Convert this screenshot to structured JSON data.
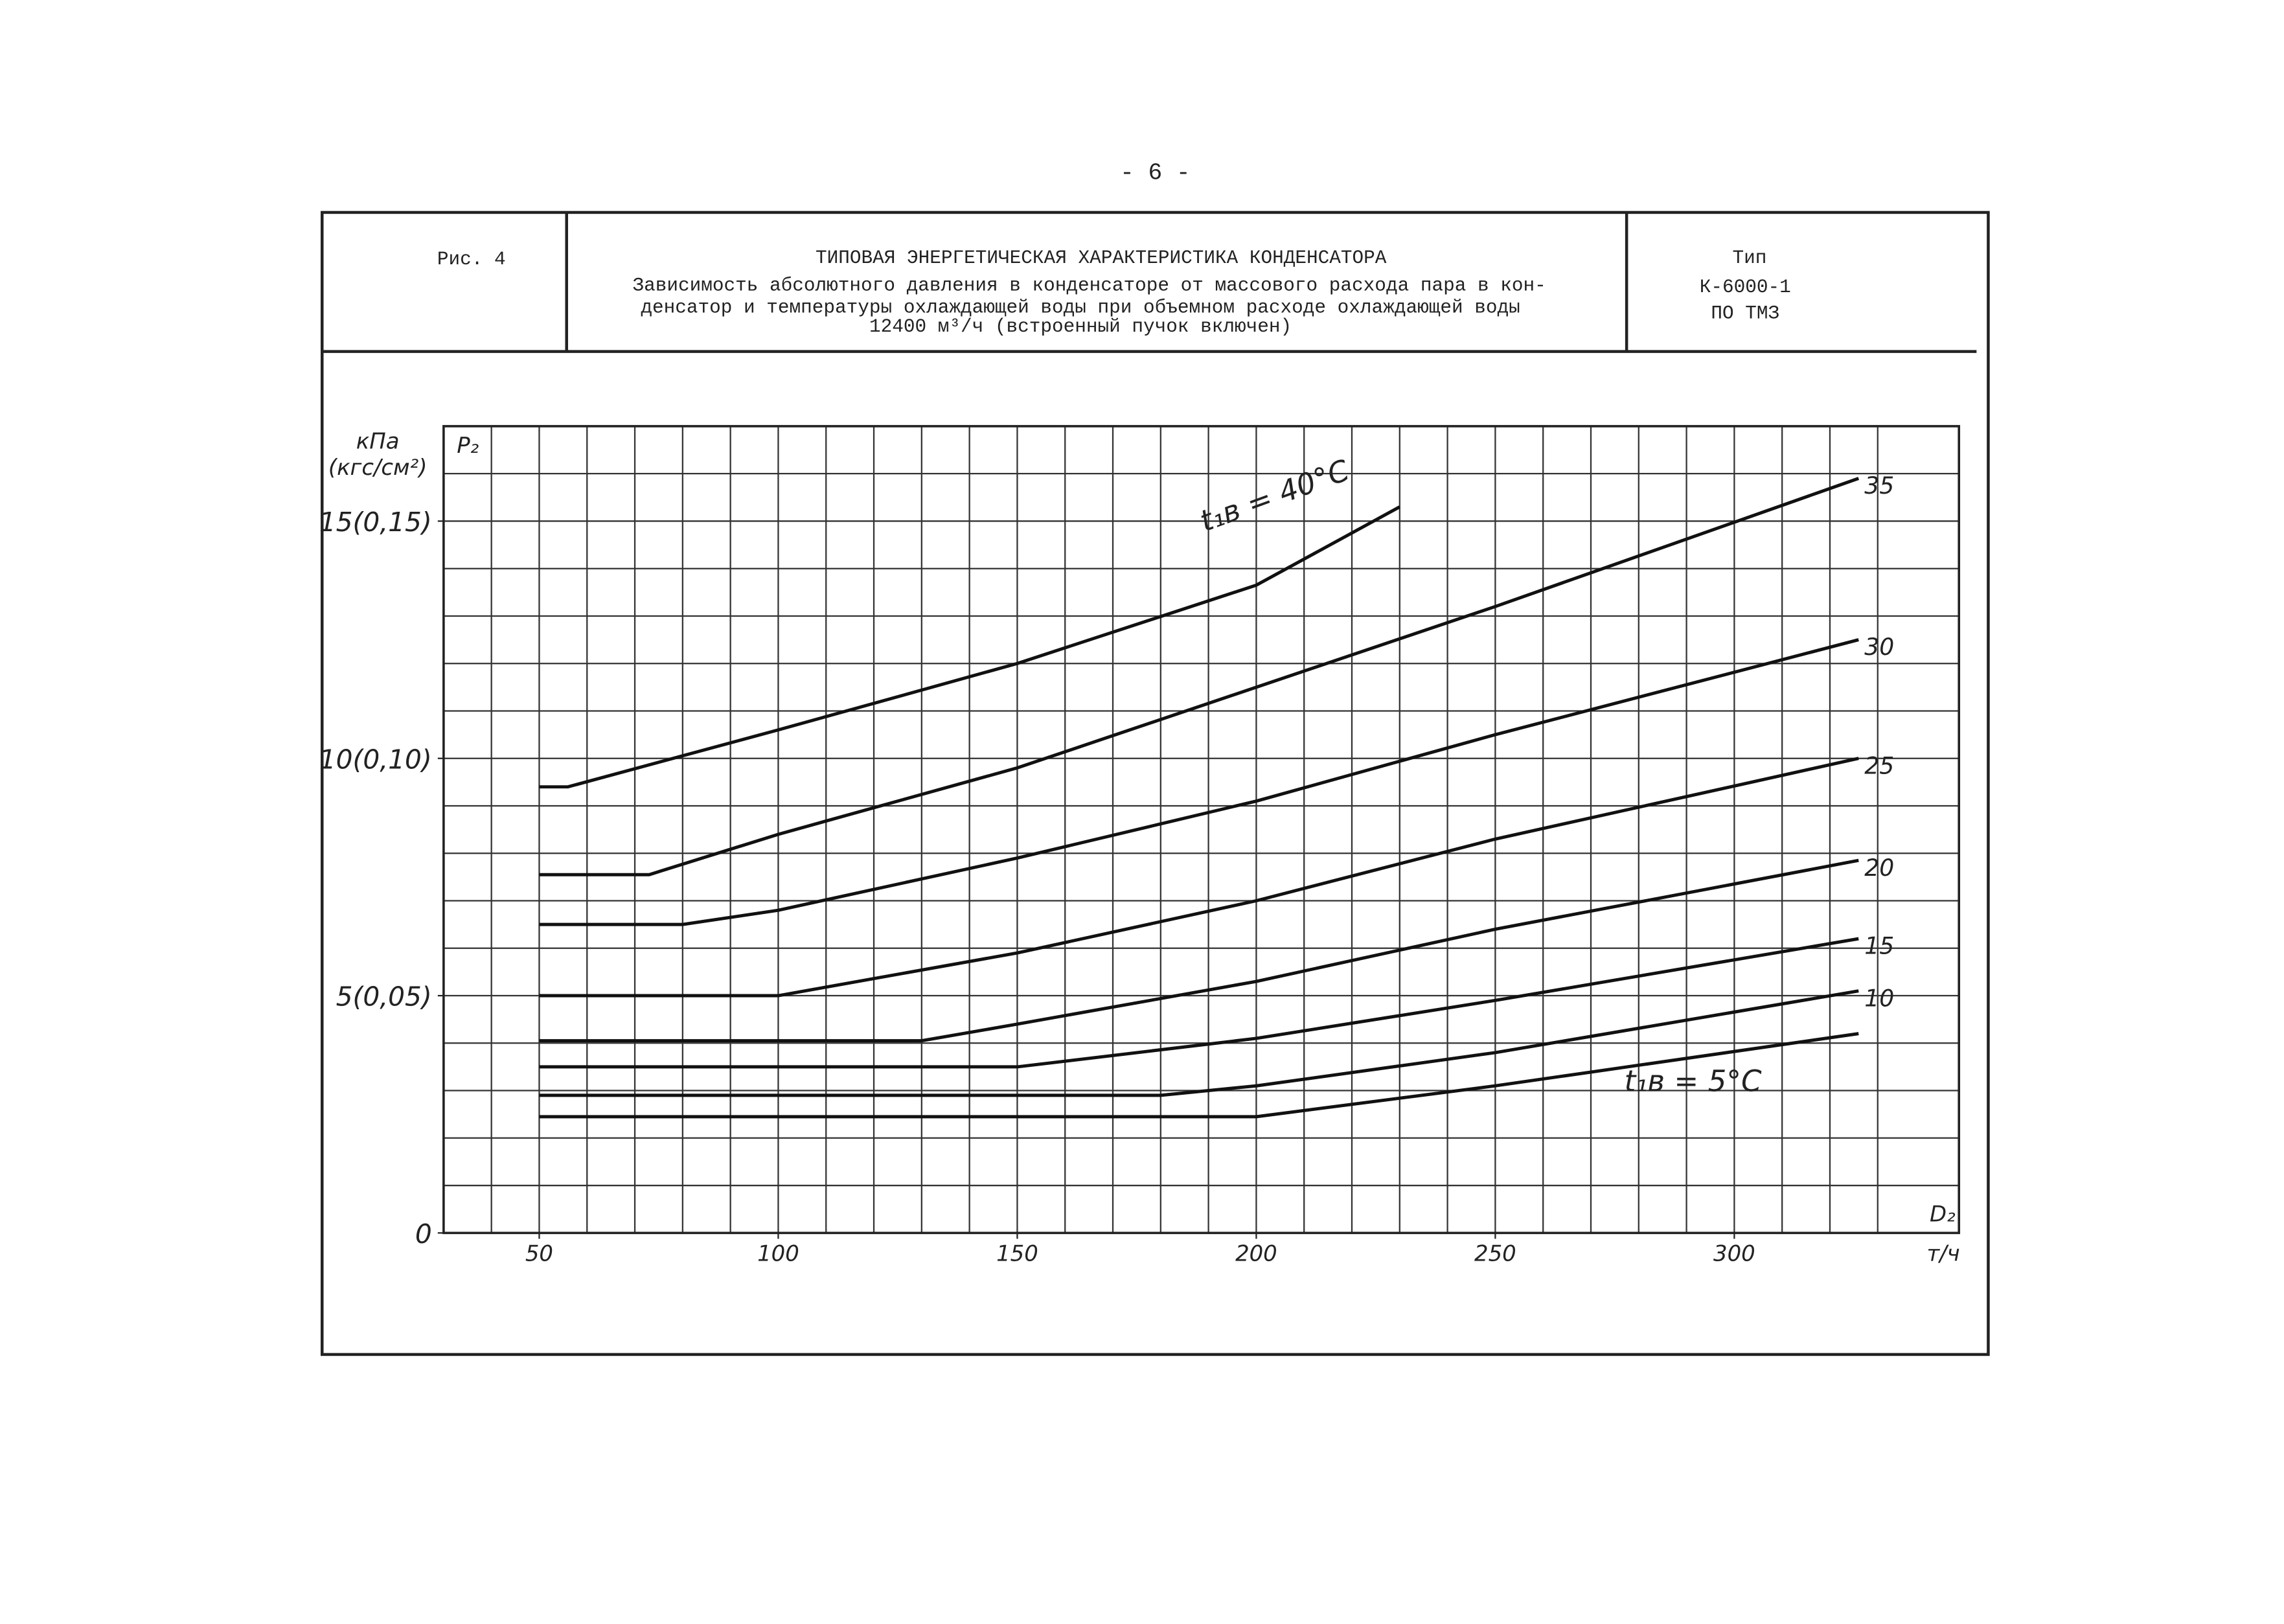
{
  "page": {
    "number": "- 6 -"
  },
  "header": {
    "figure": "Рис. 4",
    "title": "ТИПОВАЯ ЭНЕРГЕТИЧЕСКАЯ ХАРАКТЕРИСТИКА КОНДЕНСАТОРА",
    "description": [
      "Зависимость абсолютного давления в конденсаторе от массового расхода пара в кон-",
      "денсатор и температуры охлаждающей воды при объемном расходе охлаждающей воды",
      "12400 м³/ч (встроенный пучок включен)"
    ],
    "type_label": "Тип",
    "type_value": "К-6000-1",
    "maker": "ПО ТМЗ"
  },
  "chart_data": {
    "type": "line",
    "ylabel_unit": "кПа",
    "ylabel_unit2": "(кгс/см²)",
    "ylabel": "P₂",
    "xlabel": "D₂",
    "xlabel_unit": "т/ч",
    "xlim": [
      30,
      347
    ],
    "ylim": [
      0,
      17
    ],
    "xticks": [
      50,
      100,
      150,
      200,
      250,
      300
    ],
    "yticks": [
      0,
      {
        "value": 5,
        "label": "5(0,05)"
      },
      {
        "value": 10,
        "label": "10(0,10)"
      },
      {
        "value": 15,
        "label": "15(0,15)"
      }
    ],
    "xgrid": [
      40,
      50,
      60,
      70,
      80,
      90,
      100,
      110,
      120,
      130,
      140,
      150,
      160,
      170,
      180,
      190,
      200,
      210,
      220,
      230,
      240,
      250,
      260,
      270,
      280,
      290,
      300,
      310,
      320,
      330
    ],
    "ygrid": [
      1,
      2,
      3,
      4,
      5,
      6,
      7,
      8,
      9,
      10,
      11,
      12,
      13,
      14,
      15,
      16
    ],
    "grid": true,
    "series": [
      {
        "name": "t₁в = 40°C",
        "color": "#111",
        "x": [
          50,
          56,
          100,
          150,
          200,
          230
        ],
        "values": [
          9.4,
          9.4,
          10.6,
          12.0,
          13.65,
          15.3
        ]
      },
      {
        "name": "35",
        "color": "#111",
        "x": [
          50,
          73,
          100,
          150,
          200,
          250,
          326
        ],
        "values": [
          7.55,
          7.55,
          8.4,
          9.8,
          11.5,
          13.2,
          15.9
        ]
      },
      {
        "name": "30",
        "color": "#111",
        "x": [
          50,
          80,
          100,
          150,
          200,
          250,
          326
        ],
        "values": [
          6.5,
          6.5,
          6.8,
          7.9,
          9.1,
          10.5,
          12.5
        ]
      },
      {
        "name": "25",
        "color": "#111",
        "x": [
          50,
          100,
          150,
          200,
          250,
          326
        ],
        "values": [
          5.0,
          5.0,
          5.9,
          7.0,
          8.3,
          10.0
        ]
      },
      {
        "name": "20",
        "color": "#111",
        "x": [
          50,
          130,
          150,
          200,
          250,
          326
        ],
        "values": [
          4.05,
          4.05,
          4.4,
          5.3,
          6.4,
          7.85
        ]
      },
      {
        "name": "15",
        "color": "#111",
        "x": [
          50,
          150,
          200,
          250,
          326
        ],
        "values": [
          3.5,
          3.5,
          4.1,
          4.9,
          6.2
        ]
      },
      {
        "name": "10",
        "color": "#111",
        "x": [
          50,
          180,
          200,
          250,
          326
        ],
        "values": [
          2.9,
          2.9,
          3.1,
          3.8,
          5.1
        ]
      },
      {
        "name": "t₁в = 5°C",
        "color": "#111",
        "x": [
          50,
          200,
          250,
          326
        ],
        "values": [
          2.45,
          2.45,
          3.1,
          4.2
        ]
      }
    ]
  }
}
